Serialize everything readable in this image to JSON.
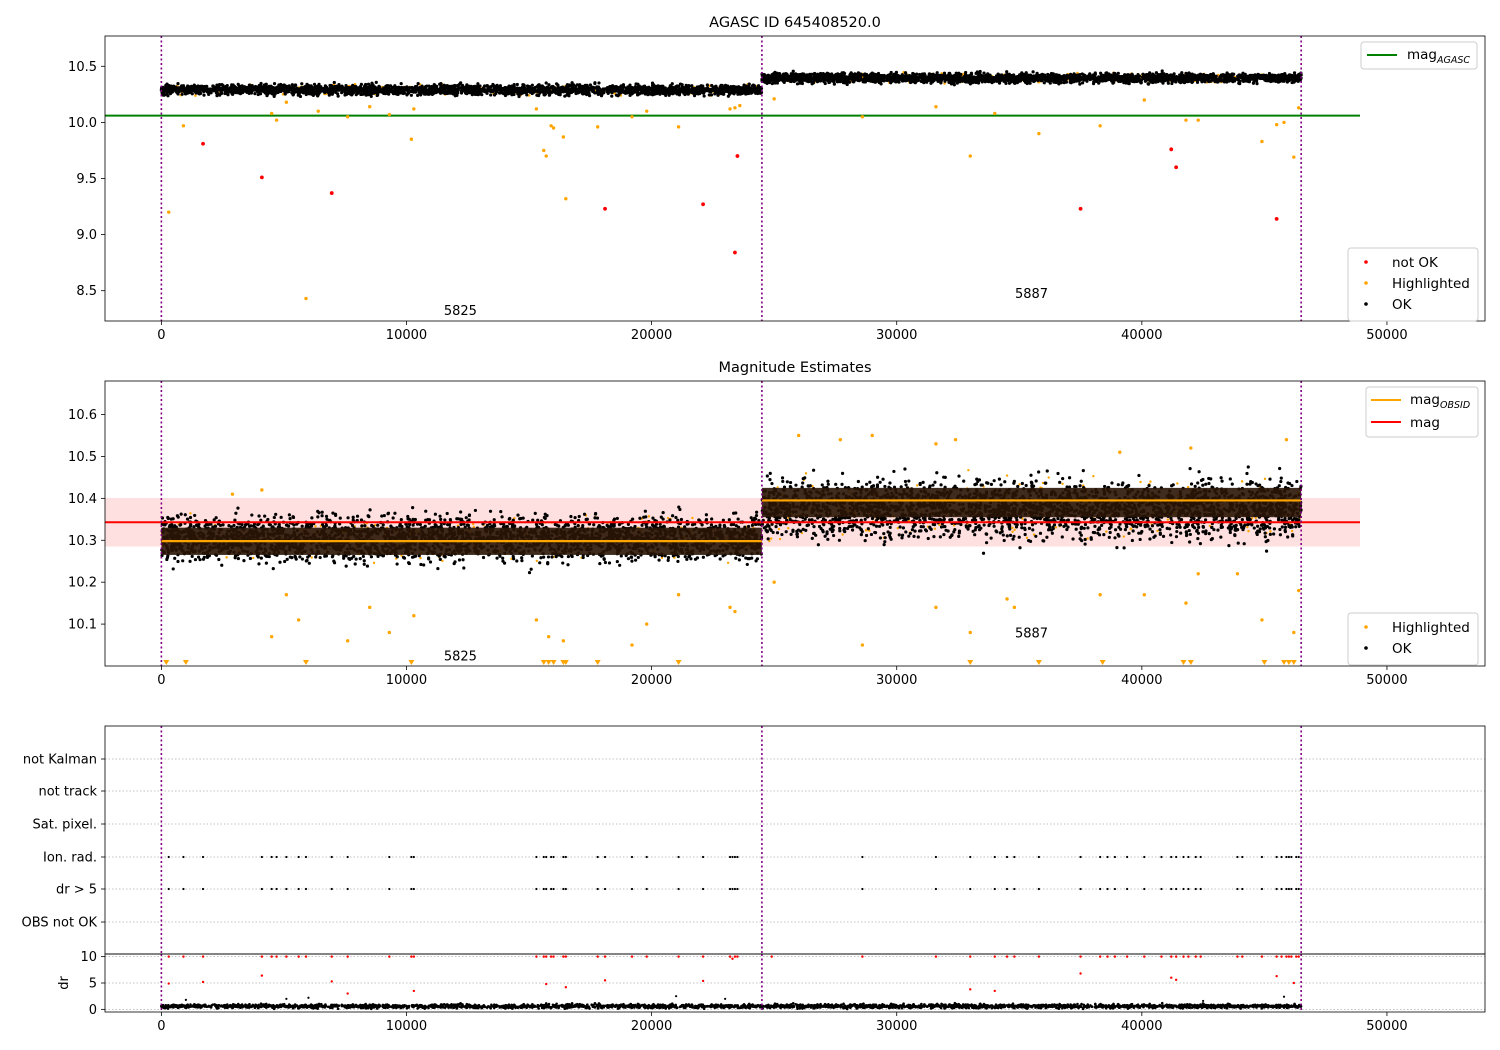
{
  "figure": {
    "title": "AGASC ID 645408520.0"
  },
  "chart_data": [
    {
      "type": "scatter",
      "panel": "top",
      "xlim": [
        -2300,
        54000
      ],
      "ylim": [
        8.23,
        10.77
      ],
      "xticks": [
        0,
        10000,
        20000,
        30000,
        40000,
        50000
      ],
      "yticks": [
        8.5,
        9.0,
        9.5,
        10.0,
        10.5
      ],
      "reference_line": {
        "label": "mag",
        "sub": "AGASC",
        "value": 10.06,
        "x_range": [
          -2300,
          48900
        ],
        "color": "#008000"
      },
      "obsid_boundaries": [
        0,
        24500,
        46500
      ],
      "obsid_labels": [
        {
          "text": "5825",
          "x": 12200,
          "y": 8.33
        },
        {
          "text": "5887",
          "x": 35500,
          "y": 8.48
        }
      ],
      "segments": [
        {
          "x_range": [
            0,
            24500
          ],
          "ok_band": [
            10.22,
            10.36
          ],
          "ok_mean": 10.29
        },
        {
          "x_range": [
            24500,
            46500
          ],
          "ok_band": [
            10.33,
            10.46
          ],
          "ok_mean": 10.39
        }
      ],
      "series": [
        {
          "name": "not OK",
          "color": "#ff0000",
          "points": [
            [
              1700,
              9.81
            ],
            [
              4100,
              9.51
            ],
            [
              6950,
              9.37
            ],
            [
              18100,
              9.23
            ],
            [
              22100,
              9.27
            ],
            [
              23400,
              8.84
            ],
            [
              23500,
              9.7
            ],
            [
              37500,
              9.23
            ],
            [
              41200,
              9.76
            ],
            [
              41400,
              9.6
            ],
            [
              45500,
              9.14
            ]
          ]
        },
        {
          "name": "Highlighted",
          "color": "#ffa500",
          "points": [
            [
              300,
              9.2
            ],
            [
              900,
              9.97
            ],
            [
              4500,
              10.08
            ],
            [
              4700,
              10.02
            ],
            [
              5100,
              10.18
            ],
            [
              5900,
              8.43
            ],
            [
              6400,
              10.1
            ],
            [
              7600,
              10.05
            ],
            [
              8500,
              10.14
            ],
            [
              9300,
              10.07
            ],
            [
              10200,
              9.85
            ],
            [
              10300,
              10.12
            ],
            [
              15300,
              10.12
            ],
            [
              15600,
              9.75
            ],
            [
              15700,
              9.7
            ],
            [
              15900,
              9.97
            ],
            [
              16000,
              9.95
            ],
            [
              16400,
              9.87
            ],
            [
              16500,
              9.32
            ],
            [
              17800,
              9.96
            ],
            [
              19200,
              10.05
            ],
            [
              19800,
              10.1
            ],
            [
              21100,
              9.96
            ],
            [
              23200,
              10.12
            ],
            [
              23400,
              10.13
            ],
            [
              23600,
              10.15
            ],
            [
              25000,
              10.21
            ],
            [
              28600,
              10.05
            ],
            [
              31600,
              10.14
            ],
            [
              33000,
              9.7
            ],
            [
              34000,
              10.08
            ],
            [
              35800,
              9.9
            ],
            [
              38300,
              9.97
            ],
            [
              40100,
              10.2
            ],
            [
              41800,
              10.02
            ],
            [
              42300,
              10.02
            ],
            [
              44900,
              9.83
            ],
            [
              45500,
              9.98
            ],
            [
              45800,
              10.0
            ],
            [
              46200,
              9.69
            ],
            [
              46400,
              10.13
            ]
          ]
        },
        {
          "name": "OK",
          "color": "#000000",
          "points": []
        }
      ]
    },
    {
      "type": "scatter",
      "panel": "middle",
      "title": "Magnitude Estimates",
      "xlim": [
        -2300,
        54000
      ],
      "ylim": [
        10.0,
        10.68
      ],
      "xticks": [
        0,
        10000,
        20000,
        30000,
        40000,
        50000
      ],
      "yticks": [
        10.1,
        10.2,
        10.3,
        10.4,
        10.5,
        10.6
      ],
      "mean_mag": {
        "label": "mag",
        "value": 10.343,
        "band": [
          10.285,
          10.401
        ],
        "x_range": [
          -2300,
          48900
        ],
        "color": "#ff0000"
      },
      "obsid_mag": {
        "label": "mag",
        "sub": "OBSID",
        "color": "#ffa500"
      },
      "obsid_boundaries": [
        0,
        24500,
        46500
      ],
      "obsid_labels": [
        {
          "text": "5825",
          "x": 12200,
          "y": 10.025
        },
        {
          "text": "5887",
          "x": 35500,
          "y": 10.08
        }
      ],
      "segments": [
        {
          "x_range": [
            0,
            24500
          ],
          "ok_band": [
            10.22,
            10.39
          ],
          "core_band": [
            10.265,
            10.33
          ],
          "obsid_mean": 10.298
        },
        {
          "x_range": [
            24500,
            46500
          ],
          "ok_band": [
            10.27,
            10.48
          ],
          "core_band": [
            10.355,
            10.425
          ],
          "obsid_mean": 10.395
        }
      ],
      "series": [
        {
          "name": "Highlighted",
          "color": "#ffa500",
          "points": [
            [
              4500,
              10.07
            ],
            [
              5100,
              10.17
            ],
            [
              5600,
              10.11
            ],
            [
              7600,
              10.06
            ],
            [
              8500,
              10.14
            ],
            [
              9300,
              10.08
            ],
            [
              10300,
              10.12
            ],
            [
              15300,
              10.11
            ],
            [
              15800,
              10.07
            ],
            [
              16400,
              10.06
            ],
            [
              19200,
              10.05
            ],
            [
              19800,
              10.1
            ],
            [
              21100,
              10.17
            ],
            [
              23200,
              10.14
            ],
            [
              23400,
              10.13
            ],
            [
              25000,
              10.2
            ],
            [
              28600,
              10.05
            ],
            [
              31600,
              10.14
            ],
            [
              33000,
              10.08
            ],
            [
              34500,
              10.16
            ],
            [
              34800,
              10.14
            ],
            [
              38300,
              10.17
            ],
            [
              40100,
              10.17
            ],
            [
              41800,
              10.15
            ],
            [
              42300,
              10.22
            ],
            [
              43900,
              10.22
            ],
            [
              44900,
              10.11
            ],
            [
              46200,
              10.08
            ],
            [
              46400,
              10.18
            ],
            [
              4100,
              10.42
            ],
            [
              2900,
              10.41
            ],
            [
              26000,
              10.55
            ],
            [
              27700,
              10.54
            ],
            [
              29000,
              10.55
            ],
            [
              31600,
              10.53
            ],
            [
              32400,
              10.54
            ],
            [
              39100,
              10.51
            ],
            [
              42000,
              10.52
            ],
            [
              45900,
              10.54
            ]
          ]
        },
        {
          "name": "OK",
          "color": "#000000",
          "points": []
        }
      ],
      "below_axis_markers": [
        200,
        1000,
        5900,
        10200,
        15600,
        15800,
        16000,
        16400,
        16500,
        17800,
        21100,
        33000,
        35800,
        38400,
        41700,
        42000,
        45000,
        45800,
        46000,
        46200
      ]
    },
    {
      "type": "scatter",
      "panel": "flags",
      "xlim": [
        -2300,
        54000
      ],
      "categories": [
        "not Kalman",
        "not track",
        "Sat. pixel.",
        "Ion. rad.",
        "dr > 5",
        "OBS not OK"
      ],
      "obsid_boundaries": [
        0,
        24500,
        46500
      ],
      "flag_times": {
        "Ion. rad.": [
          300,
          900,
          1700,
          4100,
          4500,
          4700,
          5100,
          5600,
          5900,
          6950,
          7600,
          9300,
          10200,
          10300,
          15300,
          15600,
          15700,
          15900,
          16000,
          16400,
          16500,
          17800,
          18100,
          19200,
          19800,
          21100,
          22100,
          23200,
          23300,
          23400,
          23500,
          28600,
          31600,
          33000,
          34000,
          34500,
          34800,
          35800,
          37500,
          38300,
          38600,
          38900,
          39400,
          40100,
          40800,
          41200,
          41400,
          41700,
          41900,
          42200,
          42400,
          43900,
          44100,
          44900,
          45500,
          45700,
          45900,
          46000,
          46100,
          46300,
          46400
        ],
        "dr > 5": [
          300,
          900,
          1700,
          4100,
          4500,
          4700,
          5100,
          5600,
          5900,
          6950,
          7600,
          9300,
          10200,
          10300,
          15300,
          15600,
          15700,
          15900,
          16000,
          16400,
          16500,
          17800,
          18100,
          19200,
          19800,
          21100,
          22100,
          23200,
          23300,
          23400,
          23500,
          28600,
          31600,
          33000,
          34000,
          34500,
          34800,
          35800,
          37500,
          38300,
          38600,
          38900,
          39400,
          40100,
          40800,
          41200,
          41400,
          41700,
          41900,
          42200,
          42400,
          43900,
          44100,
          44900,
          45500,
          45700,
          45900,
          46000,
          46100,
          46300,
          46400
        ]
      }
    },
    {
      "type": "scatter",
      "panel": "dr",
      "ylabel": "dr",
      "xlim": [
        -2300,
        54000
      ],
      "ylim": [
        -0.5,
        10.5
      ],
      "xticks": [
        0,
        10000,
        20000,
        30000,
        40000,
        50000
      ],
      "yticks": [
        0,
        5,
        10
      ],
      "obsid_boundaries": [
        0,
        24500,
        46500
      ],
      "ok_band": [
        0.0,
        1.2
      ],
      "series": [
        {
          "name": "red",
          "color": "#ff0000",
          "points": [
            [
              300,
              10
            ],
            [
              300,
              4.9
            ],
            [
              900,
              10
            ],
            [
              1700,
              10
            ],
            [
              1700,
              5.2
            ],
            [
              4100,
              10
            ],
            [
              4100,
              6.4
            ],
            [
              4500,
              10
            ],
            [
              4700,
              10
            ],
            [
              5100,
              10
            ],
            [
              5600,
              10
            ],
            [
              5900,
              10
            ],
            [
              6950,
              10
            ],
            [
              6950,
              5.3
            ],
            [
              7600,
              10
            ],
            [
              7600,
              3.0
            ],
            [
              9300,
              10
            ],
            [
              10200,
              10
            ],
            [
              10300,
              10
            ],
            [
              10300,
              3.5
            ],
            [
              15300,
              10
            ],
            [
              15600,
              10
            ],
            [
              15700,
              10
            ],
            [
              15700,
              4.8
            ],
            [
              15900,
              10
            ],
            [
              16000,
              10
            ],
            [
              16400,
              10
            ],
            [
              16500,
              10
            ],
            [
              16500,
              4.2
            ],
            [
              17800,
              10
            ],
            [
              18100,
              10
            ],
            [
              18100,
              5.5
            ],
            [
              19200,
              10
            ],
            [
              19800,
              10
            ],
            [
              21100,
              10
            ],
            [
              22100,
              10
            ],
            [
              22100,
              5.4
            ],
            [
              23200,
              10
            ],
            [
              23300,
              9.6
            ],
            [
              23400,
              10
            ],
            [
              23500,
              10
            ],
            [
              24900,
              10
            ],
            [
              28600,
              10
            ],
            [
              31600,
              10
            ],
            [
              33000,
              10
            ],
            [
              33000,
              3.8
            ],
            [
              34000,
              10
            ],
            [
              34000,
              3.5
            ],
            [
              34500,
              10
            ],
            [
              34800,
              10
            ],
            [
              35800,
              10
            ],
            [
              37500,
              10
            ],
            [
              37500,
              6.8
            ],
            [
              38300,
              10
            ],
            [
              38600,
              10
            ],
            [
              38900,
              10
            ],
            [
              39400,
              10
            ],
            [
              40100,
              10
            ],
            [
              40800,
              10
            ],
            [
              41200,
              10
            ],
            [
              41200,
              6.0
            ],
            [
              41400,
              10
            ],
            [
              41400,
              5.6
            ],
            [
              41700,
              10
            ],
            [
              41900,
              10
            ],
            [
              42200,
              10
            ],
            [
              42400,
              10
            ],
            [
              43900,
              10
            ],
            [
              44100,
              10
            ],
            [
              44900,
              10
            ],
            [
              45500,
              10
            ],
            [
              45500,
              6.3
            ],
            [
              45700,
              10
            ],
            [
              45900,
              10
            ],
            [
              46000,
              10
            ],
            [
              46100,
              10
            ],
            [
              46300,
              10
            ],
            [
              46400,
              10
            ],
            [
              46200,
              5.0
            ]
          ]
        },
        {
          "name": "black",
          "color": "#000000",
          "points": [
            [
              1000,
              1.8
            ],
            [
              5100,
              2.0
            ],
            [
              6000,
              2.2
            ],
            [
              21000,
              2.5
            ],
            [
              23000,
              2.0
            ],
            [
              42500,
              1.6
            ],
            [
              45800,
              2.4
            ]
          ]
        }
      ]
    }
  ],
  "legends": {
    "top": [
      {
        "name": "not OK",
        "color": "#ff0000"
      },
      {
        "name": "Highlighted",
        "color": "#ffa500"
      },
      {
        "name": "OK",
        "color": "#000000"
      }
    ],
    "middle": [
      {
        "name": "Highlighted",
        "color": "#ffa500"
      },
      {
        "name": "OK",
        "color": "#000000"
      }
    ]
  }
}
